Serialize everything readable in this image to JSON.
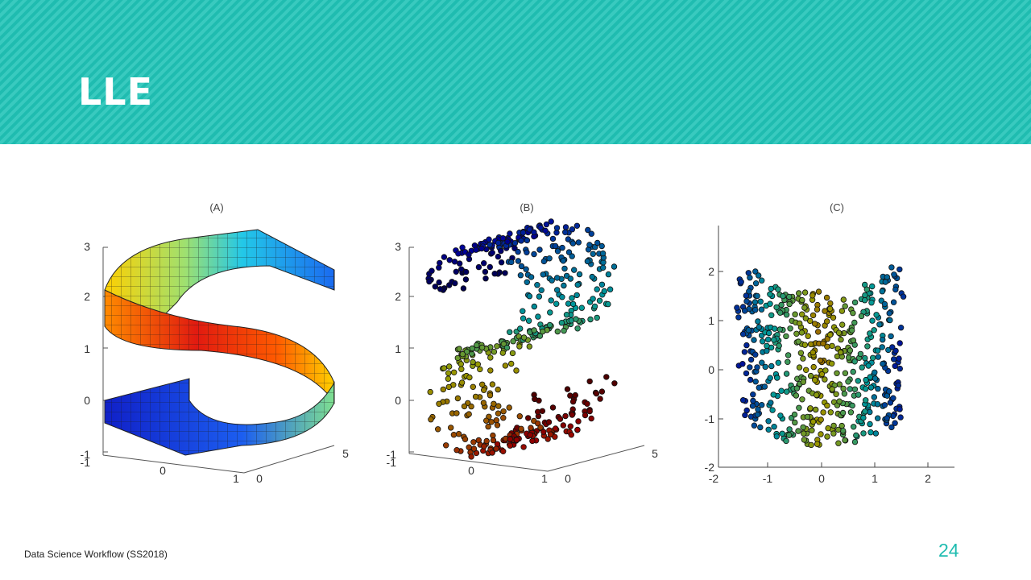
{
  "slide": {
    "title": "LLE",
    "footer": "Data Science Workflow (SS2018)",
    "page_number": "24",
    "accent_color": "#1fbcb0"
  },
  "panels": [
    {
      "label": "(A)",
      "y_ticks": [
        "-1",
        "0",
        "1",
        "2",
        "3"
      ],
      "x_ticks": [
        "0",
        "1"
      ],
      "z_ticks": [
        "0",
        "5"
      ],
      "extra_ticks": [
        "-1"
      ]
    },
    {
      "label": "(B)",
      "y_ticks": [
        "-1",
        "0",
        "1",
        "2",
        "3"
      ],
      "x_ticks": [
        "0",
        "1"
      ],
      "z_ticks": [
        "0",
        "5"
      ],
      "extra_ticks": [
        "-1"
      ]
    },
    {
      "label": "(C)",
      "y_ticks": [
        "-2",
        "-1",
        "0",
        "1",
        "2"
      ],
      "x_ticks": [
        "-2",
        "-1",
        "0",
        "1",
        "2"
      ]
    }
  ]
}
